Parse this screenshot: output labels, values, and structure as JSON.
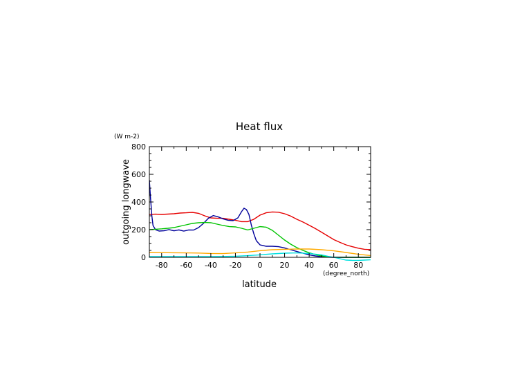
{
  "chart_data": {
    "type": "line",
    "title": "Heat flux",
    "xlabel": "latitude",
    "ylabel": "outgoing longwave",
    "x_unit": "(degree_north)",
    "y_unit": "(W m-2)",
    "xlim": [
      -90,
      90
    ],
    "ylim": [
      0,
      800
    ],
    "x_ticks": [
      -80,
      -60,
      -40,
      -20,
      0,
      20,
      40,
      60,
      80
    ],
    "y_ticks": [
      0,
      200,
      400,
      600,
      800
    ],
    "grid": false,
    "series": [
      {
        "color": "#e60000",
        "points": [
          [
            -90,
            310
          ],
          [
            -85,
            312
          ],
          [
            -80,
            310
          ],
          [
            -70,
            315
          ],
          [
            -65,
            320
          ],
          [
            -60,
            322
          ],
          [
            -55,
            325
          ],
          [
            -50,
            318
          ],
          [
            -45,
            300
          ],
          [
            -40,
            285
          ],
          [
            -35,
            282
          ],
          [
            -30,
            282
          ],
          [
            -25,
            275
          ],
          [
            -20,
            268
          ],
          [
            -15,
            258
          ],
          [
            -10,
            258
          ],
          [
            -5,
            275
          ],
          [
            0,
            305
          ],
          [
            5,
            322
          ],
          [
            10,
            328
          ],
          [
            15,
            326
          ],
          [
            20,
            315
          ],
          [
            25,
            298
          ],
          [
            30,
            275
          ],
          [
            35,
            255
          ],
          [
            40,
            232
          ],
          [
            45,
            208
          ],
          [
            50,
            182
          ],
          [
            55,
            155
          ],
          [
            60,
            128
          ],
          [
            65,
            108
          ],
          [
            70,
            90
          ],
          [
            75,
            77
          ],
          [
            80,
            66
          ],
          [
            85,
            58
          ],
          [
            90,
            55
          ]
        ]
      },
      {
        "color": "#00009a",
        "points": [
          [
            -90,
            560
          ],
          [
            -89,
            420
          ],
          [
            -88,
            300
          ],
          [
            -87,
            230
          ],
          [
            -85,
            200
          ],
          [
            -82,
            190
          ],
          [
            -78,
            192
          ],
          [
            -74,
            200
          ],
          [
            -70,
            192
          ],
          [
            -66,
            198
          ],
          [
            -62,
            190
          ],
          [
            -58,
            198
          ],
          [
            -54,
            197
          ],
          [
            -50,
            215
          ],
          [
            -46,
            245
          ],
          [
            -42,
            282
          ],
          [
            -38,
            302
          ],
          [
            -34,
            292
          ],
          [
            -30,
            278
          ],
          [
            -26,
            268
          ],
          [
            -22,
            265
          ],
          [
            -18,
            285
          ],
          [
            -15,
            330
          ],
          [
            -13,
            355
          ],
          [
            -11,
            345
          ],
          [
            -9,
            310
          ],
          [
            -7,
            230
          ],
          [
            -5,
            170
          ],
          [
            -3,
            120
          ],
          [
            0,
            90
          ],
          [
            5,
            80
          ],
          [
            10,
            80
          ],
          [
            15,
            77
          ],
          [
            20,
            68
          ],
          [
            25,
            55
          ],
          [
            30,
            42
          ],
          [
            35,
            30
          ],
          [
            40,
            18
          ],
          [
            45,
            10
          ],
          [
            50,
            4
          ],
          [
            55,
            1
          ],
          [
            60,
            0
          ],
          [
            70,
            0
          ],
          [
            80,
            0
          ],
          [
            90,
            0
          ]
        ]
      },
      {
        "color": "#00c400",
        "points": [
          [
            -90,
            200
          ],
          [
            -85,
            203
          ],
          [
            -80,
            206
          ],
          [
            -75,
            210
          ],
          [
            -70,
            215
          ],
          [
            -65,
            225
          ],
          [
            -60,
            235
          ],
          [
            -55,
            245
          ],
          [
            -50,
            250
          ],
          [
            -45,
            252
          ],
          [
            -40,
            250
          ],
          [
            -35,
            240
          ],
          [
            -30,
            230
          ],
          [
            -25,
            222
          ],
          [
            -20,
            220
          ],
          [
            -15,
            210
          ],
          [
            -10,
            198
          ],
          [
            -5,
            210
          ],
          [
            0,
            222
          ],
          [
            5,
            218
          ],
          [
            10,
            195
          ],
          [
            15,
            160
          ],
          [
            20,
            125
          ],
          [
            25,
            95
          ],
          [
            30,
            70
          ],
          [
            35,
            50
          ],
          [
            40,
            33
          ],
          [
            45,
            20
          ],
          [
            50,
            10
          ],
          [
            55,
            4
          ],
          [
            60,
            1
          ],
          [
            70,
            0
          ],
          [
            80,
            0
          ],
          [
            90,
            0
          ]
        ]
      },
      {
        "color": "#ffaa00",
        "points": [
          [
            -90,
            35
          ],
          [
            -80,
            34
          ],
          [
            -70,
            33
          ],
          [
            -60,
            32
          ],
          [
            -50,
            31
          ],
          [
            -40,
            28
          ],
          [
            -30,
            27
          ],
          [
            -20,
            32
          ],
          [
            -10,
            38
          ],
          [
            0,
            48
          ],
          [
            10,
            55
          ],
          [
            20,
            58
          ],
          [
            30,
            60
          ],
          [
            40,
            60
          ],
          [
            50,
            55
          ],
          [
            60,
            47
          ],
          [
            70,
            35
          ],
          [
            80,
            22
          ],
          [
            90,
            13
          ]
        ]
      },
      {
        "color": "#00e0e0",
        "points": [
          [
            -90,
            5
          ],
          [
            -80,
            5
          ],
          [
            -70,
            5
          ],
          [
            -60,
            5
          ],
          [
            -50,
            5
          ],
          [
            -40,
            5
          ],
          [
            -30,
            6
          ],
          [
            -20,
            8
          ],
          [
            -10,
            12
          ],
          [
            0,
            18
          ],
          [
            10,
            25
          ],
          [
            20,
            30
          ],
          [
            30,
            32
          ],
          [
            40,
            28
          ],
          [
            50,
            18
          ],
          [
            55,
            8
          ],
          [
            60,
            0
          ],
          [
            65,
            -10
          ],
          [
            70,
            -20
          ],
          [
            75,
            -22
          ],
          [
            80,
            -22
          ],
          [
            85,
            -20
          ],
          [
            90,
            -18
          ]
        ]
      }
    ]
  }
}
